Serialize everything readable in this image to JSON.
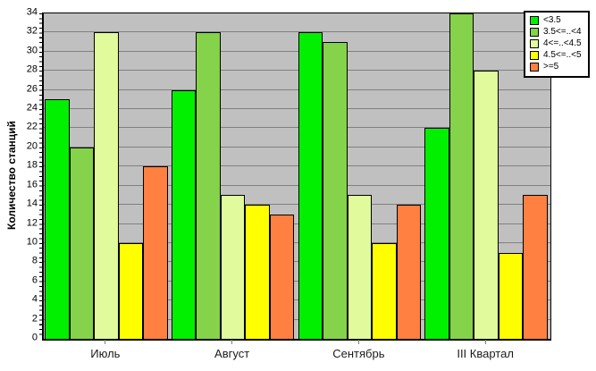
{
  "chart_data": {
    "type": "bar",
    "title": "",
    "xlabel": "",
    "ylabel": "Количество станций",
    "categories": [
      "Июль",
      "Август",
      "Сентябрь",
      "III Квартал"
    ],
    "series": [
      {
        "name": "<3.5",
        "color": "#00F000",
        "values": [
          25,
          26,
          32,
          22
        ]
      },
      {
        "name": "3.5<=..<4",
        "color": "#85D24B",
        "values": [
          20,
          32,
          31,
          34
        ]
      },
      {
        "name": "4<=..<4.5",
        "color": "#E0FA9C",
        "values": [
          32,
          15,
          15,
          28
        ]
      },
      {
        "name": "4.5<=..<5",
        "color": "#FFFF00",
        "values": [
          10,
          14,
          10,
          9
        ]
      },
      {
        "name": ">=5",
        "color": "#FF8040",
        "values": [
          18,
          13,
          14,
          15
        ]
      }
    ],
    "ylim": [
      0,
      34
    ],
    "ytick_step": 2,
    "grid": true,
    "gridline_color": "#808080",
    "plot_bg": "#C0C0C0",
    "tick_color": "#808080",
    "legend_position": "top-right"
  }
}
